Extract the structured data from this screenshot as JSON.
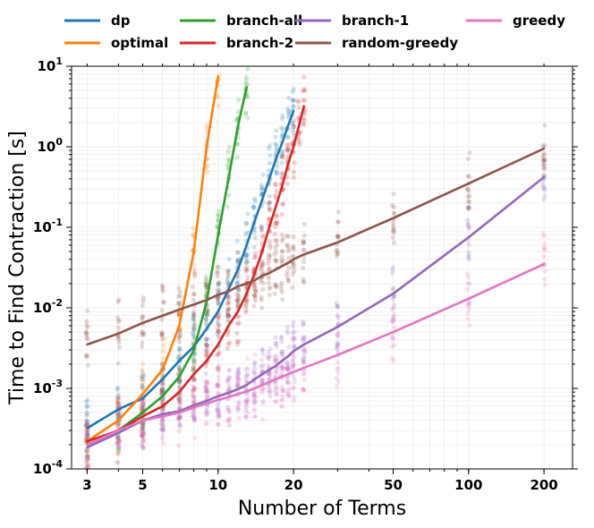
{
  "chart_data": {
    "type": "line",
    "title": "",
    "xlabel": "Number of Terms",
    "ylabel": "Time to Find Contraction [s]",
    "xscale": "log",
    "yscale": "log",
    "xlim": [
      2.6,
      260
    ],
    "ylim": [
      0.0001,
      10
    ],
    "grid": true,
    "legend_position": "top",
    "x_ticks": [
      {
        "value": 3,
        "label": "3"
      },
      {
        "value": 5,
        "label": "5"
      },
      {
        "value": 10,
        "label": "10"
      },
      {
        "value": 20,
        "label": "20"
      },
      {
        "value": 50,
        "label": "50"
      },
      {
        "value": 100,
        "label": "100"
      },
      {
        "value": 200,
        "label": "200"
      }
    ],
    "y_ticks": [
      {
        "value": 0.0001,
        "base": "10",
        "exp": "-4"
      },
      {
        "value": 0.001,
        "base": "10",
        "exp": "-3"
      },
      {
        "value": 0.01,
        "base": "10",
        "exp": "-2"
      },
      {
        "value": 0.1,
        "base": "10",
        "exp": "-1"
      },
      {
        "value": 1,
        "base": "10",
        "exp": "0"
      },
      {
        "value": 10,
        "base": "10",
        "exp": "1"
      }
    ],
    "series": [
      {
        "name": "dp",
        "color": "#1f77b4",
        "x": [
          3,
          4,
          5,
          6,
          7,
          8,
          9,
          10,
          11,
          12,
          13,
          14,
          15,
          16,
          17,
          18,
          19,
          20
        ],
        "y": [
          0.00032,
          0.00055,
          0.00075,
          0.0013,
          0.0022,
          0.0033,
          0.0055,
          0.009,
          0.017,
          0.03,
          0.06,
          0.12,
          0.22,
          0.4,
          0.7,
          1.1,
          1.8,
          2.8
        ]
      },
      {
        "name": "optimal",
        "color": "#ff7f0e",
        "x": [
          3,
          4,
          5,
          6,
          7,
          8,
          9,
          10
        ],
        "y": [
          0.00022,
          0.0004,
          0.00085,
          0.0017,
          0.006,
          0.05,
          1.0,
          7.5
        ]
      },
      {
        "name": "branch-all",
        "color": "#2ca02c",
        "x": [
          3,
          4,
          5,
          6,
          7,
          8,
          9,
          10,
          11,
          12,
          13
        ],
        "y": [
          0.0002,
          0.0003,
          0.0005,
          0.0008,
          0.0014,
          0.003,
          0.012,
          0.08,
          0.4,
          1.8,
          5.5
        ]
      },
      {
        "name": "branch-2",
        "color": "#d62728",
        "x": [
          3,
          4,
          5,
          6,
          7,
          8,
          9,
          10,
          11,
          12,
          13,
          14,
          15,
          16,
          17,
          18,
          19,
          20,
          21,
          22
        ],
        "y": [
          0.00022,
          0.0003,
          0.00045,
          0.0006,
          0.0009,
          0.0015,
          0.0022,
          0.0035,
          0.006,
          0.009,
          0.015,
          0.027,
          0.05,
          0.1,
          0.18,
          0.32,
          0.6,
          1.0,
          1.8,
          3.2
        ]
      },
      {
        "name": "branch-1",
        "color": "#9467bd",
        "x": [
          3,
          4,
          5,
          6,
          7,
          8,
          9,
          10,
          11,
          12,
          13,
          14,
          15,
          16,
          17,
          18,
          19,
          20,
          22,
          30,
          50,
          100,
          200
        ],
        "y": [
          0.000185,
          0.00028,
          0.0004,
          0.00048,
          0.00052,
          0.00062,
          0.0007,
          0.0008,
          0.00088,
          0.00098,
          0.0011,
          0.0013,
          0.0015,
          0.0017,
          0.0019,
          0.0022,
          0.0025,
          0.0029,
          0.0035,
          0.0058,
          0.015,
          0.075,
          0.42
        ]
      },
      {
        "name": "random-greedy",
        "color": "#8c564b",
        "x": [
          3,
          4,
          5,
          6,
          7,
          8,
          9,
          10,
          11,
          12,
          13,
          14,
          15,
          16,
          17,
          18,
          19,
          20,
          22,
          30,
          50,
          100,
          200
        ],
        "y": [
          0.0035,
          0.0048,
          0.0065,
          0.008,
          0.0095,
          0.011,
          0.0125,
          0.0145,
          0.016,
          0.0185,
          0.02,
          0.022,
          0.025,
          0.027,
          0.03,
          0.033,
          0.036,
          0.04,
          0.046,
          0.065,
          0.13,
          0.35,
          0.95
        ]
      },
      {
        "name": "greedy",
        "color": "#e377c2",
        "x": [
          3,
          4,
          5,
          6,
          7,
          8,
          9,
          10,
          11,
          12,
          13,
          14,
          15,
          16,
          17,
          18,
          19,
          20,
          22,
          30,
          50,
          100,
          200
        ],
        "y": [
          0.0002,
          0.0003,
          0.0004,
          0.00045,
          0.0005,
          0.00058,
          0.00065,
          0.00072,
          0.00078,
          0.00085,
          0.00092,
          0.001,
          0.0011,
          0.0012,
          0.0013,
          0.0014,
          0.0015,
          0.0016,
          0.0018,
          0.0026,
          0.005,
          0.013,
          0.035
        ]
      }
    ]
  }
}
